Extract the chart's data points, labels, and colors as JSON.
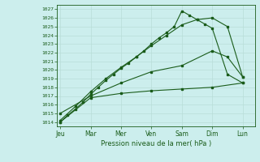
{
  "xlabel": "Pression niveau de la mer( hPa )",
  "background_color": "#cceeed",
  "grid_color": "#b8ddd8",
  "line_color": "#1a5c1a",
  "xtick_labels": [
    "Jeu",
    "Mar",
    "Mer",
    "Ven",
    "Sam",
    "Dim",
    "Lun"
  ],
  "day_positions": [
    0,
    1,
    2,
    3,
    4,
    5,
    6
  ],
  "line1_x": [
    0,
    0.25,
    0.5,
    0.75,
    1.0,
    1.25,
    1.5,
    1.75,
    2.0,
    2.25,
    2.5,
    2.75,
    3.0,
    3.25,
    3.5,
    3.75,
    4.0,
    4.25,
    4.5,
    4.75,
    5.0,
    5.5,
    6.0
  ],
  "line1_y": [
    1014.0,
    1014.8,
    1015.5,
    1016.3,
    1017.2,
    1018.0,
    1018.8,
    1019.5,
    1020.2,
    1020.8,
    1021.5,
    1022.2,
    1023.0,
    1023.7,
    1024.3,
    1025.0,
    1026.8,
    1026.3,
    1025.8,
    1025.3,
    1024.8,
    1019.5,
    1018.5
  ],
  "line2_x": [
    0,
    0.5,
    1.0,
    1.5,
    2.0,
    2.5,
    3.0,
    3.5,
    4.0,
    4.5,
    5.0,
    5.5,
    6.0
  ],
  "line2_y": [
    1014.2,
    1015.8,
    1017.5,
    1019.0,
    1020.3,
    1021.5,
    1022.8,
    1024.0,
    1025.2,
    1025.8,
    1026.0,
    1025.0,
    1019.2
  ],
  "line3_x": [
    0,
    1.0,
    2.0,
    3.0,
    4.0,
    5.0,
    5.5,
    6.0
  ],
  "line3_y": [
    1015.0,
    1017.0,
    1018.5,
    1019.8,
    1020.5,
    1022.2,
    1021.5,
    1019.2
  ],
  "line4_x": [
    0,
    1.0,
    2.0,
    3.0,
    4.0,
    5.0,
    6.0
  ],
  "line4_y": [
    1014.0,
    1016.8,
    1017.3,
    1017.6,
    1017.8,
    1018.0,
    1018.5
  ],
  "ylim_min": 1013.5,
  "ylim_max": 1027.5,
  "xlim_min": -0.1,
  "xlim_max": 6.4
}
